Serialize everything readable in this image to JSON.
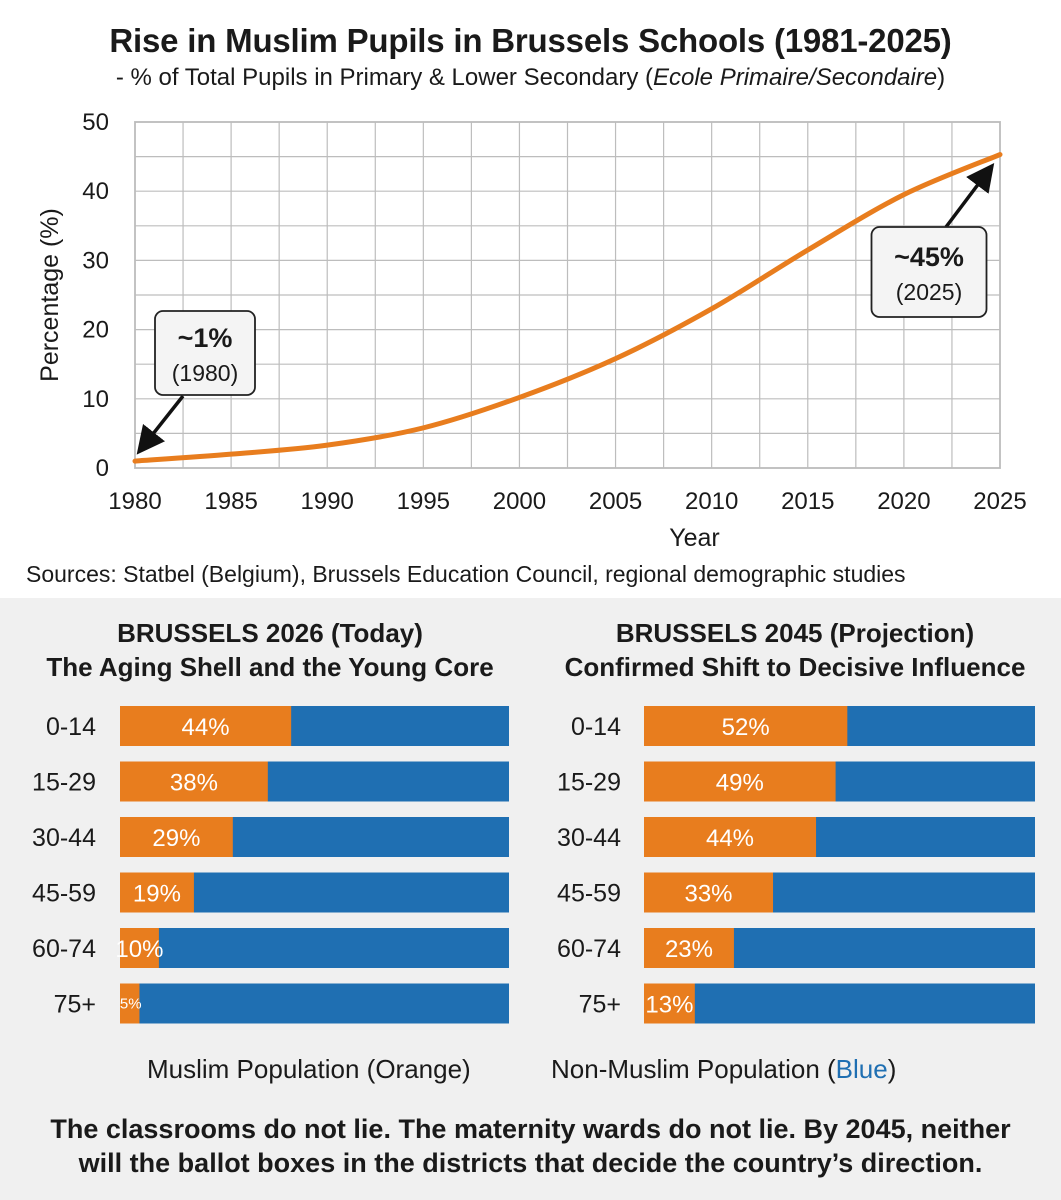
{
  "title": "Rise in Muslim Pupils in Brussels Schools (1981-2025)",
  "subtitle_prefix": "- % of Total Pupils in Primary & Lower Secondary (",
  "subtitle_italic": "Ecole Primaire/Secondaire",
  "subtitle_suffix": ")",
  "sources": "Sources: Statbel (Belgium), Brussels Education Council, regional demographic studies",
  "colors": {
    "orange": "#e87d1e",
    "blue": "#1f6fb2",
    "grid": "#bdbdbd",
    "panel_bg": "#f0f0f0"
  },
  "chart_data": [
    {
      "type": "line",
      "title": "Rise in Muslim Pupils in Brussels Schools (1981-2025)",
      "xlabel": "Year",
      "ylabel": "Percentage (%)",
      "x": [
        1980,
        1985,
        1990,
        1995,
        2000,
        2005,
        2010,
        2015,
        2020,
        2025
      ],
      "series": [
        {
          "name": "Muslim pupils",
          "values": [
            1,
            2,
            3.3,
            5.8,
            10.2,
            15.8,
            23,
            31.5,
            39.5,
            45.3
          ]
        }
      ],
      "xlim": [
        1980,
        2025
      ],
      "ylim": [
        0,
        50
      ],
      "xticks": [
        "1980",
        "1985",
        "1990",
        "1995",
        "2000",
        "2005",
        "2010",
        "2015",
        "2020",
        "2025"
      ],
      "yticks": [
        "0",
        "10",
        "20",
        "30",
        "40",
        "50"
      ],
      "grid": true,
      "annotations": [
        {
          "label": "~1%",
          "sublabel": "(1980)",
          "x": 1980,
          "y": 1
        },
        {
          "label": "~45%",
          "sublabel": "(2025)",
          "x": 2025,
          "y": 45
        }
      ]
    },
    {
      "type": "bar",
      "orientation": "horizontal-stacked-100",
      "title": "BRUSSELS 2026 (Today)",
      "subtitle": "The Aging Shell and the Young Core",
      "categories": [
        "0-14",
        "15-29",
        "30-44",
        "45-59",
        "60-74",
        "75+"
      ],
      "series": [
        {
          "name": "Muslim Population",
          "color": "orange",
          "values": [
            44,
            38,
            29,
            19,
            10,
            5
          ],
          "labels": [
            "44%",
            "38%",
            "29%",
            "19%",
            "10%",
            "5%"
          ]
        },
        {
          "name": "Non-Muslim Population",
          "color": "blue",
          "values": [
            56,
            62,
            71,
            81,
            90,
            95
          ]
        }
      ]
    },
    {
      "type": "bar",
      "orientation": "horizontal-stacked-100",
      "title": "BRUSSELS 2045 (Projection)",
      "subtitle": "Confirmed Shift to Decisive Influence",
      "categories": [
        "0-14",
        "15-29",
        "30-44",
        "45-59",
        "60-74",
        "75+"
      ],
      "series": [
        {
          "name": "Muslim Population",
          "color": "orange",
          "values": [
            52,
            49,
            44,
            33,
            23,
            13
          ],
          "labels": [
            "52%",
            "49%",
            "44%",
            "33%",
            "23%",
            "13%"
          ]
        },
        {
          "name": "Non-Muslim Population",
          "color": "blue",
          "values": [
            48,
            51,
            56,
            67,
            77,
            87
          ]
        }
      ]
    }
  ],
  "legend": {
    "muslim": "Muslim Population (Orange)",
    "non_muslim_prefix": "Non-Muslim Population (",
    "non_muslim_colored": "Blue",
    "non_muslim_suffix": ")"
  },
  "footer": {
    "line1": "The classrooms do not lie. The maternity wards do not lie. By 2045, neither",
    "line2": "will the ballot boxes in the districts that decide the country’s direction."
  }
}
